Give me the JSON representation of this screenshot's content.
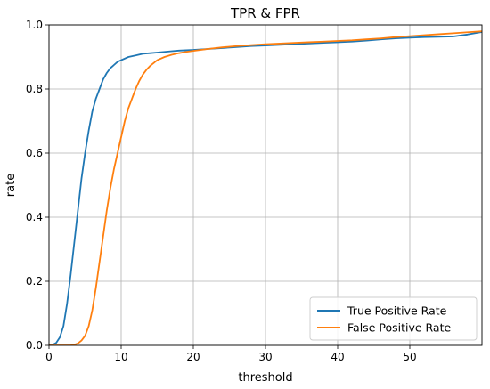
{
  "chart_data": {
    "type": "line",
    "title": "TPR & FPR",
    "xlabel": "threshold",
    "ylabel": "rate",
    "xlim": [
      0,
      60
    ],
    "ylim": [
      0,
      1
    ],
    "xticks": [
      0,
      10,
      20,
      30,
      40,
      50
    ],
    "yticks": [
      0.0,
      0.2,
      0.4,
      0.6,
      0.8,
      1.0
    ],
    "xtick_labels": [
      "0",
      "10",
      "20",
      "30",
      "40",
      "50"
    ],
    "ytick_labels": [
      "0.0",
      "0.2",
      "0.4",
      "0.6",
      "0.8",
      "1.0"
    ],
    "grid": true,
    "legend_position": "bottom-right",
    "series": [
      {
        "name": "True Positive Rate",
        "color": "#1f77b4",
        "x": [
          0,
          0.5,
          1,
          1.5,
          2,
          2.5,
          3,
          3.5,
          4,
          4.5,
          5,
          5.5,
          6,
          6.5,
          7,
          7.5,
          8,
          8.5,
          9,
          9.5,
          10,
          11,
          12,
          13,
          14,
          15,
          16,
          17,
          18,
          19,
          20,
          22,
          24,
          26,
          28,
          30,
          32,
          34,
          36,
          38,
          40,
          42,
          44,
          46,
          48,
          50,
          52,
          54,
          56,
          58,
          60
        ],
        "y": [
          0.0,
          0.002,
          0.008,
          0.025,
          0.06,
          0.13,
          0.22,
          0.32,
          0.42,
          0.52,
          0.6,
          0.67,
          0.73,
          0.77,
          0.8,
          0.83,
          0.85,
          0.865,
          0.875,
          0.885,
          0.89,
          0.9,
          0.905,
          0.91,
          0.912,
          0.914,
          0.916,
          0.918,
          0.92,
          0.921,
          0.922,
          0.925,
          0.928,
          0.931,
          0.934,
          0.936,
          0.938,
          0.94,
          0.942,
          0.944,
          0.946,
          0.948,
          0.951,
          0.955,
          0.958,
          0.96,
          0.962,
          0.963,
          0.964,
          0.97,
          0.978
        ]
      },
      {
        "name": "False Positive Rate",
        "color": "#ff7f0e",
        "x": [
          0,
          3,
          3.5,
          4,
          4.5,
          5,
          5.5,
          6,
          6.5,
          7,
          7.5,
          8,
          8.5,
          9,
          9.5,
          10,
          10.5,
          11,
          11.5,
          12,
          12.5,
          13,
          13.5,
          14,
          15,
          16,
          17,
          18,
          19,
          20,
          22,
          24,
          26,
          28,
          30,
          32,
          34,
          36,
          38,
          40,
          42,
          44,
          46,
          48,
          50,
          52,
          54,
          56,
          58,
          60
        ],
        "y": [
          0.0,
          0.0,
          0.002,
          0.006,
          0.015,
          0.03,
          0.06,
          0.11,
          0.18,
          0.26,
          0.34,
          0.42,
          0.49,
          0.55,
          0.6,
          0.65,
          0.7,
          0.74,
          0.77,
          0.8,
          0.825,
          0.845,
          0.86,
          0.872,
          0.89,
          0.9,
          0.907,
          0.912,
          0.916,
          0.919,
          0.925,
          0.93,
          0.934,
          0.937,
          0.94,
          0.942,
          0.944,
          0.946,
          0.948,
          0.95,
          0.952,
          0.955,
          0.958,
          0.962,
          0.965,
          0.968,
          0.971,
          0.974,
          0.977,
          0.98
        ]
      }
    ]
  }
}
